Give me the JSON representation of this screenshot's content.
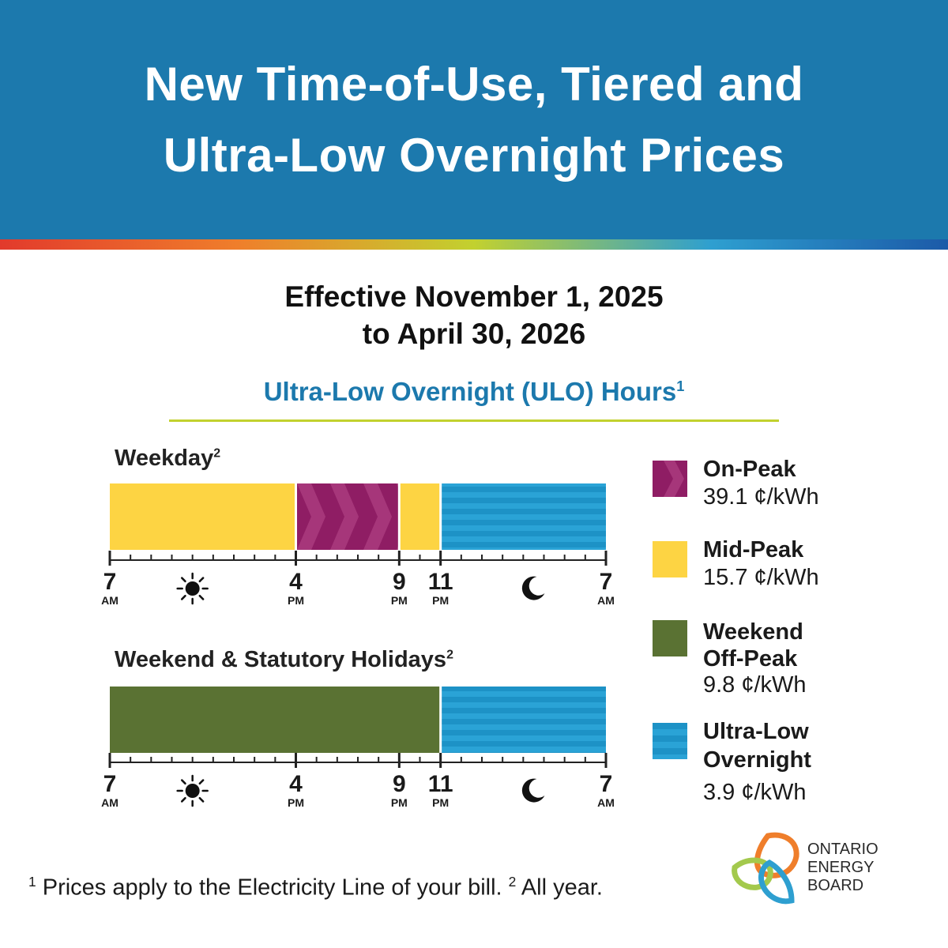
{
  "header": {
    "title_line1": "New Time-of-Use, Tiered and",
    "title_line2": "Ultra-Low Overnight Prices",
    "background_color": "#1c79ad"
  },
  "effective": {
    "line1": "Effective November 1, 2025",
    "line2": "to April 30, 2026"
  },
  "ulo": {
    "title": "Ultra-Low Overnight (ULO) Hours",
    "footnote_marker": "1"
  },
  "schedules": [
    {
      "label": "Weekday",
      "footnote_marker": "2",
      "periods": [
        {
          "start": "7 AM",
          "end": "4 PM",
          "rate": "mid_peak"
        },
        {
          "start": "4 PM",
          "end": "9 PM",
          "rate": "on_peak"
        },
        {
          "start": "9 PM",
          "end": "11 PM",
          "rate": "mid_peak"
        },
        {
          "start": "11 PM",
          "end": "7 AM",
          "rate": "ultra_low"
        }
      ]
    },
    {
      "label": "Weekend & Statutory Holidays",
      "footnote_marker": "2",
      "periods": [
        {
          "start": "7 AM",
          "end": "11 PM",
          "rate": "weekend_off_peak"
        },
        {
          "start": "11 PM",
          "end": "7 AM",
          "rate": "ultra_low"
        }
      ]
    }
  ],
  "axis": {
    "ticks": [
      {
        "hour": 7,
        "num": "7",
        "unit": "AM"
      },
      {
        "hour": 16,
        "num": "4",
        "unit": "PM"
      },
      {
        "hour": 21,
        "num": "9",
        "unit": "PM"
      },
      {
        "hour": 23,
        "num": "11",
        "unit": "PM"
      },
      {
        "hour": 31,
        "num": "7",
        "unit": "AM"
      }
    ],
    "icons": [
      "sun-icon",
      "moon-icon"
    ]
  },
  "legend": [
    {
      "key": "on_peak",
      "name": "On-Peak",
      "price": "39.1 ¢/kWh",
      "color": "#8f1d64"
    },
    {
      "key": "mid_peak",
      "name": "Mid-Peak",
      "price": "15.7 ¢/kWh",
      "color": "#fdd443"
    },
    {
      "key": "weekend_off_peak",
      "name_line1": "Weekend",
      "name_line2": "Off-Peak",
      "price": "9.8 ¢/kWh",
      "color": "#5a7233"
    },
    {
      "key": "ultra_low",
      "name_line1": "Ultra-Low",
      "name_line2": "Overnight",
      "price": "3.9 ¢/kWh",
      "color": "#1d92c6"
    }
  ],
  "footnote": {
    "marker1": "1",
    "text1": "Prices apply to the Electricity Line of your bill.",
    "marker2": "2",
    "text2": "All year."
  },
  "logo": {
    "line1": "ONTARIO",
    "line2": "ENERGY",
    "line3": "BOARD"
  }
}
